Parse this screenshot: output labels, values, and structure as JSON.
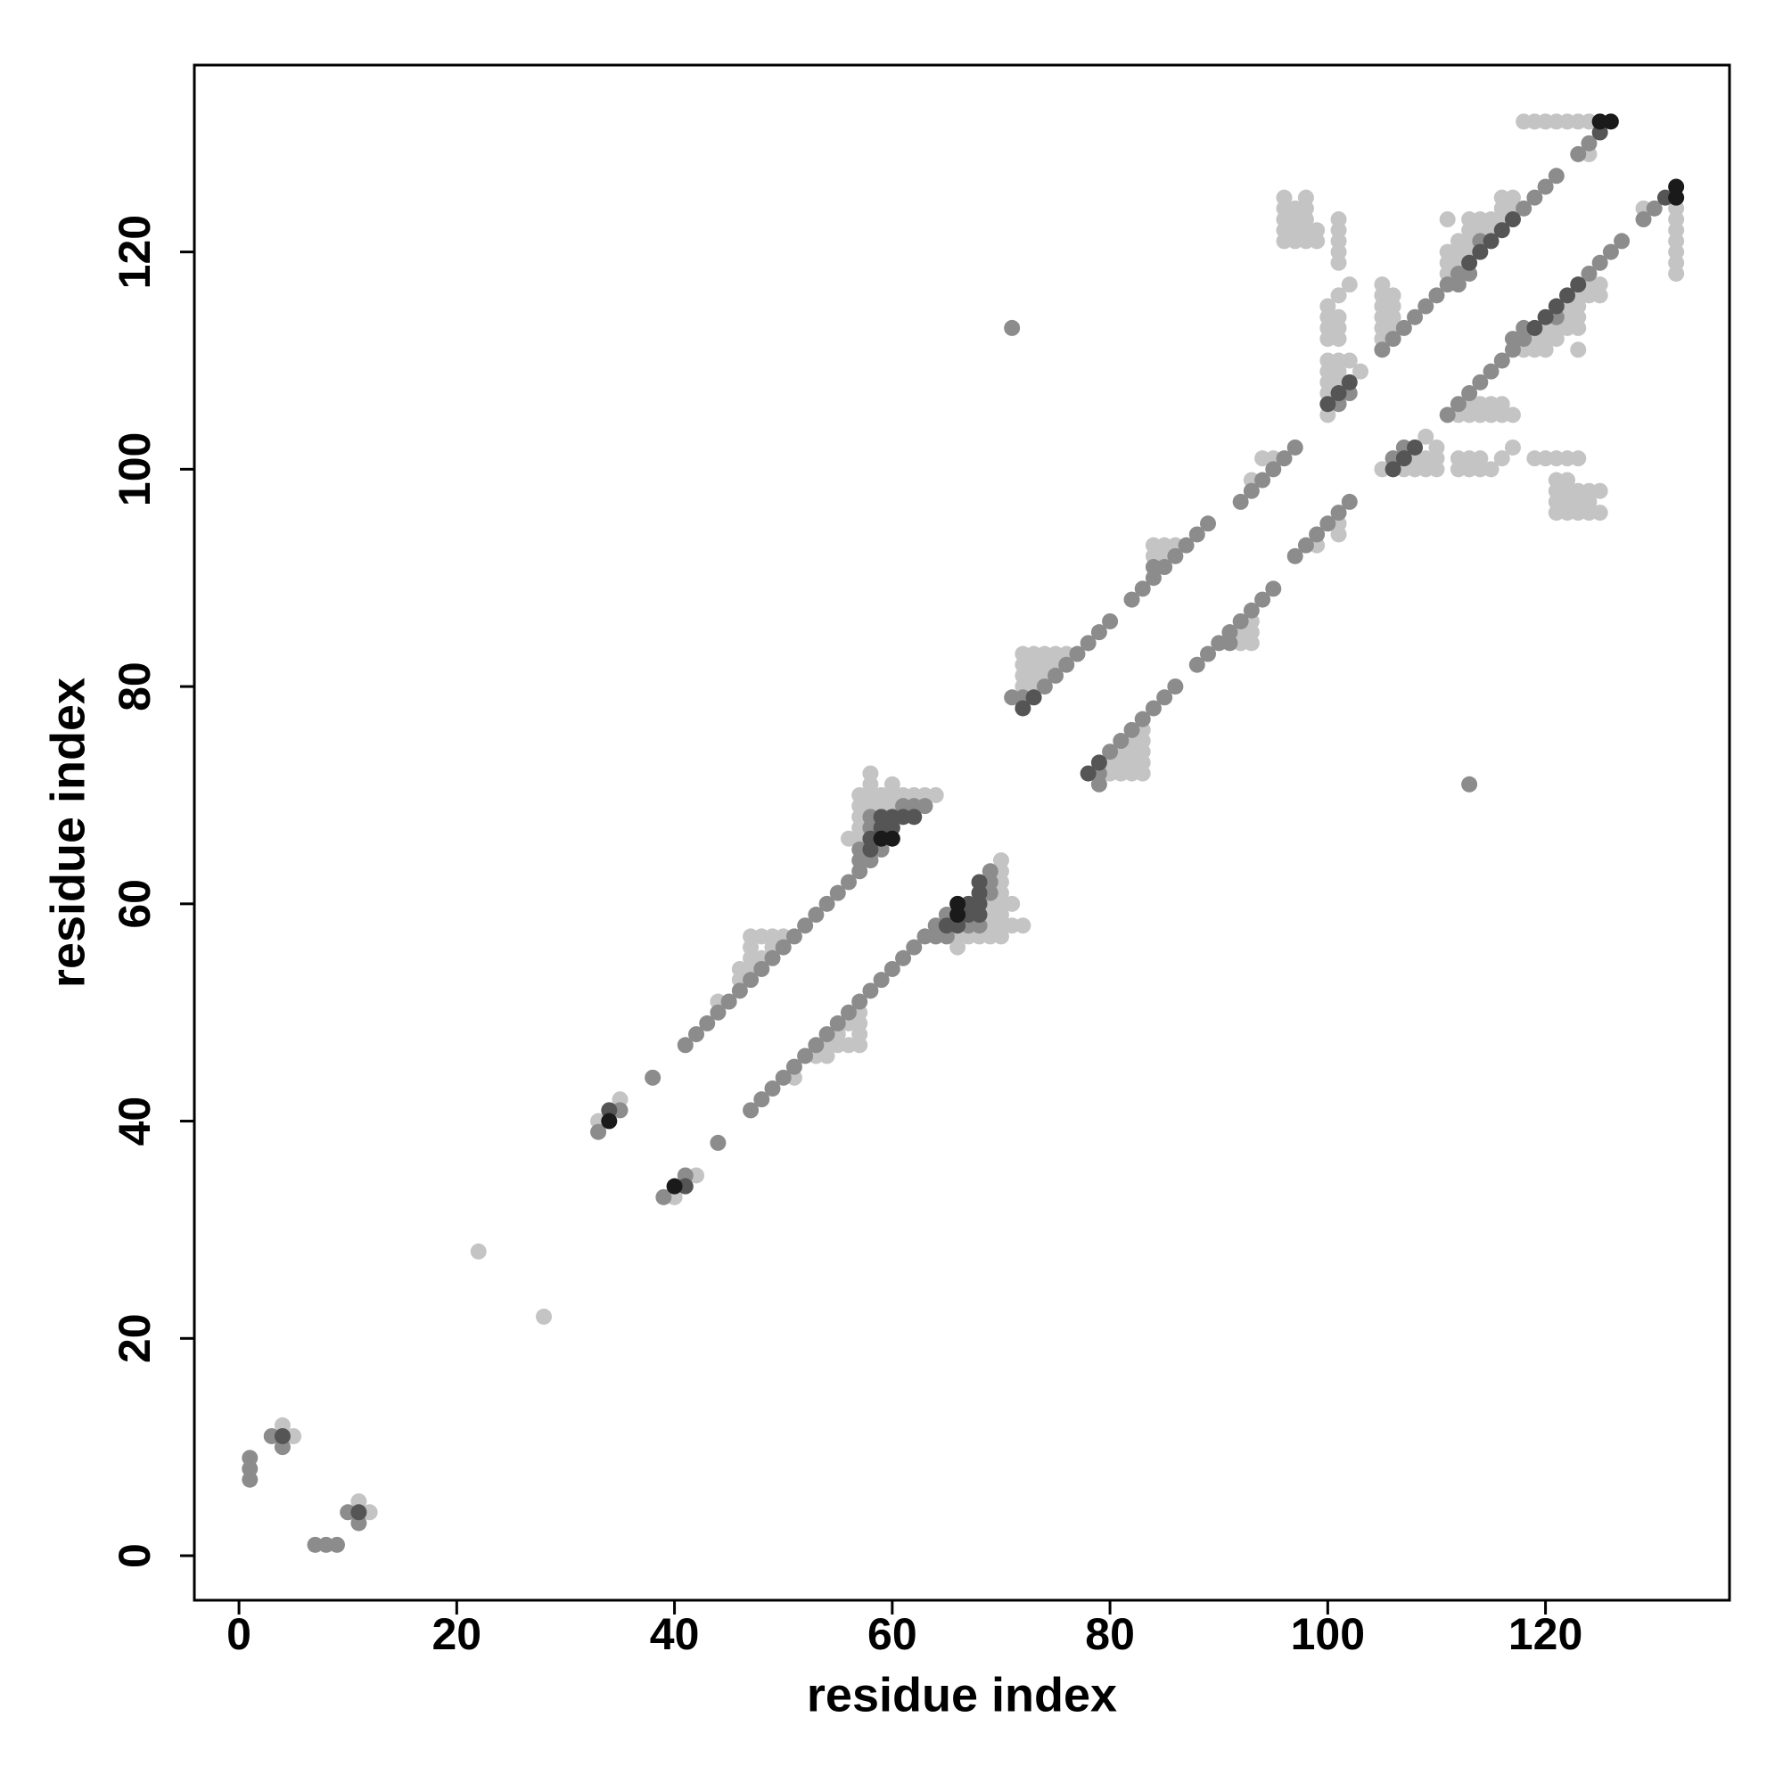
{
  "chart_data": {
    "type": "scatter",
    "xlabel": "residue index",
    "ylabel": "residue index",
    "xlim": [
      -4.1,
      136.9
    ],
    "ylim": [
      -4.1,
      137.2
    ],
    "xticks": [
      0,
      20,
      40,
      60,
      80,
      100,
      120
    ],
    "yticks": [
      0,
      20,
      40,
      60,
      80,
      100,
      120
    ],
    "series": [
      {
        "color": "#c4c4c4",
        "x": [
          4,
          5,
          22,
          33,
          35,
          44,
          46,
          46,
          47,
          47,
          47,
          47,
          48,
          48,
          49,
          49,
          50,
          56,
          57,
          57,
          57,
          57,
          57,
          58,
          58,
          58,
          58,
          59,
          59,
          60,
          60,
          60,
          61,
          62,
          63,
          64,
          72,
          72,
          72,
          72,
          73,
          73,
          73,
          73,
          74,
          74,
          74,
          75,
          75,
          76,
          84,
          84,
          85,
          85,
          86,
          93,
          94,
          95,
          96,
          96,
          96,
          96,
          96,
          97,
          97,
          97,
          97,
          98,
          98,
          98,
          98,
          98,
          99,
          99,
          101,
          101,
          101,
          101,
          101,
          100,
          100,
          100,
          100,
          101,
          101,
          101,
          101,
          102,
          100,
          100,
          100,
          100,
          100,
          101,
          101,
          101,
          102,
          103,
          105,
          105,
          105,
          105,
          105,
          105,
          106,
          106,
          106,
          106,
          111,
          111,
          111,
          111,
          112,
          112,
          112,
          113,
          113,
          113,
          113,
          114,
          114,
          115,
          115,
          116,
          116,
          116,
          117,
          117,
          118,
          119,
          120,
          121,
          122,
          123,
          124,
          124,
          12,
          11,
          28,
          40,
          42,
          51,
          53,
          54,
          54,
          55,
          56,
          57,
          55,
          57,
          56,
          57,
          57,
          66,
          66,
          67,
          68,
          69,
          70,
          69,
          70,
          71,
          72,
          69,
          70,
          69,
          70,
          71,
          70,
          70,
          70,
          70,
          80,
          81,
          82,
          83,
          80,
          81,
          82,
          83,
          81,
          82,
          83,
          82,
          83,
          83,
          92,
          93,
          92,
          93,
          93,
          99,
          101,
          101,
          121,
          122,
          123,
          124,
          125,
          121,
          122,
          123,
          124,
          121,
          122,
          123,
          124,
          125,
          121,
          122,
          119,
          120,
          121,
          122,
          123,
          112,
          113,
          114,
          115,
          112,
          113,
          114,
          116,
          117,
          105,
          107,
          108,
          109,
          110,
          108,
          109,
          110,
          110,
          109,
          112,
          113,
          114,
          115,
          116,
          117,
          113,
          114,
          115,
          116,
          118,
          119,
          120,
          123,
          119,
          120,
          121,
          120,
          121,
          122,
          123,
          122,
          123,
          122,
          123,
          123,
          124,
          125,
          124,
          125,
          132,
          132,
          132,
          132,
          132,
          132,
          132,
          129
        ],
        "y": [
          12,
          11,
          28,
          40,
          42,
          51,
          53,
          54,
          54,
          55,
          56,
          57,
          55,
          57,
          56,
          57,
          57,
          66,
          66,
          67,
          68,
          69,
          70,
          69,
          70,
          71,
          72,
          69,
          70,
          69,
          70,
          71,
          70,
          70,
          70,
          70,
          80,
          81,
          82,
          83,
          80,
          81,
          82,
          83,
          81,
          82,
          83,
          82,
          83,
          83,
          92,
          93,
          92,
          93,
          93,
          99,
          101,
          101,
          121,
          122,
          123,
          124,
          125,
          121,
          122,
          123,
          124,
          121,
          122,
          123,
          124,
          125,
          121,
          122,
          119,
          120,
          121,
          122,
          123,
          112,
          113,
          114,
          115,
          112,
          113,
          114,
          116,
          117,
          105,
          107,
          108,
          109,
          110,
          108,
          109,
          110,
          110,
          109,
          112,
          113,
          114,
          115,
          116,
          117,
          113,
          114,
          115,
          116,
          118,
          119,
          120,
          123,
          119,
          120,
          121,
          120,
          121,
          122,
          123,
          122,
          123,
          122,
          123,
          123,
          124,
          125,
          124,
          125,
          132,
          132,
          132,
          132,
          132,
          132,
          132,
          129,
          4,
          5,
          22,
          33,
          35,
          44,
          46,
          46,
          47,
          47,
          47,
          47,
          48,
          48,
          49,
          49,
          50,
          56,
          57,
          57,
          57,
          57,
          57,
          58,
          58,
          58,
          58,
          59,
          59,
          60,
          60,
          60,
          61,
          62,
          63,
          64,
          72,
          72,
          72,
          72,
          73,
          73,
          73,
          73,
          74,
          74,
          74,
          75,
          75,
          76,
          84,
          84,
          85,
          85,
          86,
          93,
          94,
          95,
          96,
          96,
          96,
          96,
          96,
          97,
          97,
          97,
          97,
          98,
          98,
          98,
          98,
          98,
          99,
          99,
          101,
          101,
          101,
          101,
          101,
          100,
          100,
          100,
          100,
          101,
          101,
          101,
          101,
          102,
          100,
          100,
          100,
          100,
          100,
          101,
          101,
          101,
          102,
          103,
          105,
          105,
          105,
          105,
          105,
          105,
          106,
          106,
          106,
          106,
          111,
          111,
          111,
          111,
          112,
          112,
          112,
          113,
          113,
          113,
          113,
          114,
          114,
          115,
          115,
          116,
          116,
          116,
          117,
          117,
          118,
          119,
          120,
          121,
          122,
          123,
          124,
          124
        ]
      },
      {
        "color": "#8c8c8c",
        "x": [
          1,
          1,
          1,
          3,
          4,
          33,
          35,
          38,
          41,
          42,
          43,
          44,
          45,
          46,
          47,
          48,
          49,
          50,
          51,
          52,
          53,
          54,
          55,
          56,
          57,
          57,
          57,
          58,
          59,
          58,
          58,
          61,
          62,
          63,
          71,
          72,
          74,
          75,
          76,
          77,
          78,
          79,
          80,
          71,
          82,
          83,
          84,
          84,
          85,
          86,
          87,
          88,
          89,
          92,
          93,
          94,
          95,
          96,
          97,
          101,
          102,
          105,
          106,
          107,
          108,
          109,
          110,
          111,
          112,
          112,
          113,
          114,
          118,
          119,
          120,
          121,
          123,
          124,
          7,
          8,
          9,
          11,
          10,
          39,
          41,
          44,
          47,
          48,
          49,
          50,
          51,
          52,
          53,
          54,
          55,
          56,
          57,
          58,
          59,
          60,
          61,
          62,
          63,
          64,
          65,
          64,
          65,
          67,
          68,
          69,
          69,
          69,
          79,
          79,
          80,
          81,
          82,
          83,
          84,
          85,
          86,
          113,
          88,
          89,
          90,
          91,
          91,
          92,
          93,
          94,
          95,
          97,
          98,
          99,
          100,
          101,
          102,
          106,
          107,
          111,
          112,
          113,
          114,
          115,
          116,
          117,
          117,
          118,
          118,
          121,
          124,
          125,
          126,
          127,
          129,
          130
        ],
        "y": [
          7,
          8,
          9,
          11,
          10,
          39,
          41,
          44,
          47,
          48,
          49,
          50,
          51,
          52,
          53,
          54,
          55,
          56,
          57,
          58,
          59,
          60,
          61,
          62,
          63,
          64,
          65,
          64,
          65,
          67,
          68,
          69,
          69,
          69,
          79,
          79,
          80,
          81,
          82,
          83,
          84,
          85,
          86,
          113,
          88,
          89,
          90,
          91,
          91,
          92,
          93,
          94,
          95,
          97,
          98,
          99,
          100,
          101,
          102,
          106,
          107,
          111,
          112,
          113,
          114,
          115,
          116,
          117,
          117,
          118,
          118,
          121,
          124,
          125,
          126,
          127,
          129,
          130,
          1,
          1,
          1,
          3,
          4,
          33,
          35,
          38,
          41,
          42,
          43,
          44,
          45,
          46,
          47,
          48,
          49,
          50,
          51,
          52,
          53,
          54,
          55,
          56,
          57,
          57,
          57,
          58,
          59,
          58,
          58,
          61,
          62,
          63,
          71,
          72,
          74,
          75,
          76,
          77,
          78,
          79,
          80,
          71,
          82,
          83,
          84,
          84,
          85,
          86,
          87,
          88,
          89,
          92,
          93,
          94,
          95,
          96,
          97,
          101,
          102,
          105,
          106,
          107,
          108,
          109,
          110,
          111,
          112,
          112,
          113,
          114,
          118,
          119,
          120,
          121,
          123,
          124
        ]
      },
      {
        "color": "#555555",
        "x": [
          4,
          34,
          58,
          58,
          59,
          59,
          60,
          60,
          61,
          62,
          72,
          73,
          100,
          101,
          102,
          113,
          114,
          115,
          116,
          117,
          125,
          11,
          41,
          65,
          66,
          67,
          68,
          67,
          68,
          68,
          68,
          78,
          79,
          106,
          107,
          108,
          119,
          120,
          121,
          122,
          123,
          131
        ],
        "y": [
          11,
          41,
          65,
          66,
          67,
          68,
          67,
          68,
          68,
          68,
          78,
          79,
          106,
          107,
          108,
          119,
          120,
          121,
          122,
          123,
          131,
          4,
          34,
          58,
          58,
          59,
          59,
          60,
          60,
          61,
          62,
          72,
          73,
          100,
          101,
          102,
          113,
          114,
          115,
          116,
          117,
          125
        ]
      },
      {
        "color": "#1a1a1a",
        "x": [
          34,
          59,
          60,
          125,
          126,
          40,
          66,
          66,
          132,
          132
        ],
        "y": [
          40,
          66,
          66,
          132,
          132,
          34,
          59,
          60,
          125,
          126
        ]
      }
    ]
  }
}
